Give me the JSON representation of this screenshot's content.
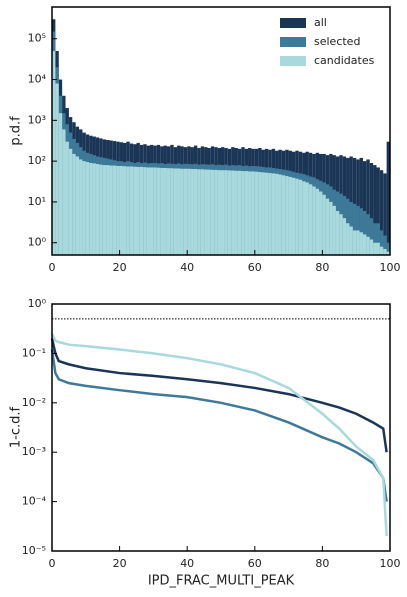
{
  "chart_data": [
    {
      "type": "histogram",
      "ylabel": "p.d.f",
      "log_y": true,
      "legend": "upper right",
      "bins": [
        0,
        1,
        2,
        3,
        4,
        5,
        6,
        7,
        8,
        9,
        10,
        11,
        12,
        13,
        14,
        15,
        16,
        17,
        18,
        19,
        20,
        21,
        22,
        23,
        24,
        25,
        26,
        27,
        28,
        29,
        30,
        31,
        32,
        33,
        34,
        35,
        36,
        37,
        38,
        39,
        40,
        41,
        42,
        43,
        44,
        45,
        46,
        47,
        48,
        49,
        50,
        51,
        52,
        53,
        54,
        55,
        56,
        57,
        58,
        59,
        60,
        61,
        62,
        63,
        64,
        65,
        66,
        67,
        68,
        69,
        70,
        71,
        72,
        73,
        74,
        75,
        76,
        77,
        78,
        79,
        80,
        81,
        82,
        83,
        84,
        85,
        86,
        87,
        88,
        89,
        90,
        91,
        92,
        93,
        94,
        95,
        96,
        97,
        98,
        99,
        100
      ],
      "series": [
        {
          "name": "all",
          "color": "#1b3557",
          "values": [
            300000,
            50000,
            10000,
            4000,
            2000,
            1200,
            900,
            700,
            600,
            500,
            450,
            420,
            400,
            380,
            360,
            340,
            330,
            320,
            310,
            300,
            290,
            280,
            300,
            270,
            260,
            280,
            250,
            260,
            240,
            250,
            240,
            250,
            230,
            240,
            230,
            250,
            220,
            240,
            230,
            220,
            230,
            220,
            240,
            210,
            230,
            220,
            210,
            230,
            220,
            210,
            220,
            210,
            200,
            220,
            210,
            200,
            220,
            200,
            210,
            200,
            200,
            210,
            190,
            200,
            190,
            200,
            180,
            190,
            180,
            190,
            180,
            170,
            180,
            170,
            160,
            170,
            160,
            150,
            160,
            150,
            150,
            140,
            150,
            140,
            130,
            140,
            130,
            120,
            130,
            120,
            110,
            120,
            100,
            110,
            90,
            80,
            70,
            60,
            50,
            300
          ]
        },
        {
          "name": "selected",
          "color": "#3d7a9a",
          "values": [
            150000,
            20000,
            4000,
            1500,
            800,
            500,
            350,
            280,
            220,
            180,
            160,
            150,
            140,
            130,
            125,
            120,
            115,
            110,
            105,
            100,
            100,
            95,
            100,
            95,
            90,
            95,
            90,
            92,
            88,
            90,
            90,
            88,
            90,
            85,
            88,
            86,
            85,
            88,
            84,
            86,
            85,
            84,
            86,
            82,
            84,
            83,
            82,
            84,
            80,
            82,
            80,
            82,
            78,
            80,
            78,
            80,
            76,
            78,
            75,
            76,
            75,
            74,
            72,
            70,
            70,
            68,
            66,
            64,
            62,
            60,
            58,
            55,
            52,
            50,
            48,
            45,
            42,
            40,
            36,
            33,
            30,
            27,
            24,
            20,
            18,
            16,
            14,
            12,
            10,
            9,
            8,
            7,
            6,
            5,
            4,
            3,
            3,
            2,
            1.5,
            1
          ]
        },
        {
          "name": "candidates",
          "color": "#a8d9dc",
          "values": [
            50000,
            8000,
            1500,
            600,
            300,
            200,
            150,
            130,
            110,
            100,
            95,
            90,
            88,
            85,
            82,
            80,
            80,
            78,
            78,
            76,
            76,
            75,
            74,
            74,
            73,
            72,
            72,
            71,
            70,
            70,
            70,
            69,
            68,
            68,
            67,
            67,
            66,
            66,
            65,
            65,
            65,
            64,
            64,
            63,
            63,
            62,
            62,
            61,
            61,
            60,
            60,
            60,
            59,
            59,
            58,
            58,
            57,
            57,
            56,
            56,
            55,
            54,
            53,
            52,
            51,
            50,
            49,
            47,
            45,
            43,
            41,
            39,
            37,
            35,
            32,
            30,
            27,
            24,
            21,
            18,
            15,
            12,
            10,
            8,
            6,
            5,
            4,
            3,
            2.5,
            2,
            2,
            1.8,
            1.6,
            1.4,
            1.2,
            1,
            1,
            0.8,
            0.7,
            0.6
          ]
        }
      ],
      "xlim": [
        0,
        100
      ],
      "xticks": [
        0,
        20,
        40,
        60,
        80,
        100
      ],
      "ylim": [
        0.5,
        600000
      ],
      "yticks": [
        {
          "value": 1,
          "label": "10⁰"
        },
        {
          "value": 10,
          "label": "10¹"
        },
        {
          "value": 100,
          "label": "10²"
        },
        {
          "value": 1000,
          "label": "10³"
        },
        {
          "value": 10000,
          "label": "10⁴"
        },
        {
          "value": 100000,
          "label": "10⁵"
        }
      ]
    },
    {
      "type": "line",
      "ylabel": "1-c.d.f",
      "xlabel": "IPD_FRAC_MULTI_PEAK",
      "log_y": true,
      "hline": 0.5,
      "x": [
        0,
        1,
        2,
        5,
        10,
        20,
        30,
        40,
        50,
        60,
        70,
        80,
        85,
        90,
        95,
        98,
        99
      ],
      "series": [
        {
          "name": "all",
          "color": "#1b3557",
          "values": [
            0.2,
            0.1,
            0.07,
            0.06,
            0.05,
            0.04,
            0.035,
            0.03,
            0.025,
            0.02,
            0.015,
            0.01,
            0.008,
            0.006,
            0.004,
            0.003,
            0.001
          ]
        },
        {
          "name": "selected",
          "color": "#3d7a9a",
          "values": [
            0.12,
            0.04,
            0.03,
            0.025,
            0.022,
            0.018,
            0.015,
            0.013,
            0.01,
            0.007,
            0.004,
            0.002,
            0.0015,
            0.001,
            0.0006,
            0.0003,
            0.0001
          ]
        },
        {
          "name": "candidates",
          "color": "#a8d9dc",
          "values": [
            0.25,
            0.18,
            0.17,
            0.15,
            0.14,
            0.12,
            0.1,
            0.08,
            0.06,
            0.04,
            0.02,
            0.006,
            0.003,
            0.0013,
            0.0007,
            0.0003,
            2e-05
          ]
        }
      ],
      "xlim": [
        0,
        100
      ],
      "xticks": [
        0,
        20,
        40,
        60,
        80,
        100
      ],
      "ylim": [
        1e-05,
        1
      ],
      "yticks": [
        {
          "value": 1e-05,
          "label": "10⁻⁵"
        },
        {
          "value": 0.0001,
          "label": "10⁻⁴"
        },
        {
          "value": 0.001,
          "label": "10⁻³"
        },
        {
          "value": 0.01,
          "label": "10⁻²"
        },
        {
          "value": 0.1,
          "label": "10⁻¹"
        },
        {
          "value": 1,
          "label": "10⁰"
        }
      ]
    }
  ]
}
